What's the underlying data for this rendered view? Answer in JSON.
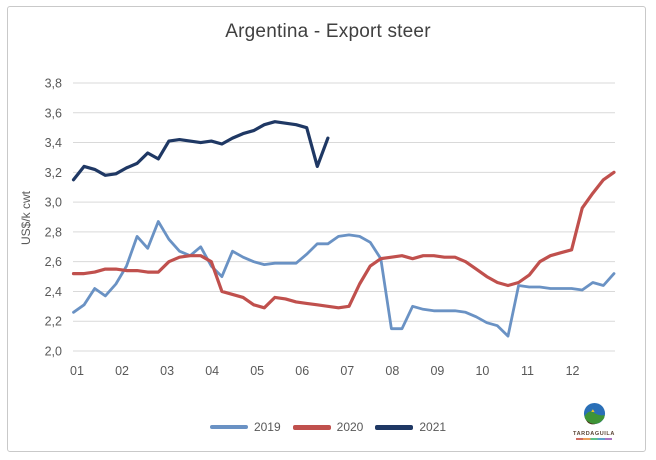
{
  "chart_data": {
    "type": "line",
    "title": "Argentina - Export steer",
    "ylabel": "US$/k cwt",
    "xlabel": "",
    "x_axis": {
      "categories": [
        "01",
        "02",
        "03",
        "04",
        "05",
        "06",
        "07",
        "08",
        "09",
        "10",
        "11",
        "12"
      ],
      "unit": "month-of-year",
      "resolution": "weekly points (52 per full year)"
    },
    "y_axis": {
      "min": 2.0,
      "max": 3.8,
      "tick_step": 0.2,
      "tick_labels": [
        "2,0",
        "2,2",
        "2,4",
        "2,6",
        "2,8",
        "3,0",
        "3,2",
        "3,4",
        "3,6",
        "3,8"
      ]
    },
    "grid": "horizontal",
    "legend_position": "bottom-center",
    "series": [
      {
        "name": "2019",
        "color": "#6a92c4",
        "values": [
          2.26,
          2.31,
          2.42,
          2.37,
          2.45,
          2.57,
          2.77,
          2.69,
          2.87,
          2.75,
          2.67,
          2.64,
          2.7,
          2.57,
          2.5,
          2.67,
          2.63,
          2.6,
          2.58,
          2.59,
          2.59,
          2.59,
          2.65,
          2.72,
          2.72,
          2.77,
          2.78,
          2.77,
          2.73,
          2.62,
          2.15,
          2.15,
          2.3,
          2.28,
          2.27,
          2.27,
          2.27,
          2.26,
          2.23,
          2.19,
          2.17,
          2.1,
          2.44,
          2.43,
          2.43,
          2.42,
          2.42,
          2.42,
          2.41,
          2.46,
          2.44,
          2.52
        ]
      },
      {
        "name": "2020",
        "color": "#c0504d",
        "values": [
          2.52,
          2.52,
          2.53,
          2.55,
          2.55,
          2.54,
          2.54,
          2.53,
          2.53,
          2.6,
          2.63,
          2.64,
          2.64,
          2.6,
          2.4,
          2.38,
          2.36,
          2.31,
          2.29,
          2.36,
          2.35,
          2.33,
          2.32,
          2.31,
          2.3,
          2.29,
          2.3,
          2.45,
          2.57,
          2.62,
          2.63,
          2.64,
          2.62,
          2.64,
          2.64,
          2.63,
          2.63,
          2.6,
          2.55,
          2.5,
          2.46,
          2.44,
          2.46,
          2.51,
          2.6,
          2.64,
          2.66,
          2.68,
          2.96,
          3.06,
          3.15,
          3.2
        ]
      },
      {
        "name": "2021",
        "color": "#1f3864",
        "values": [
          3.15,
          3.24,
          3.22,
          3.18,
          3.19,
          3.23,
          3.26,
          3.33,
          3.29,
          3.41,
          3.42,
          3.41,
          3.4,
          3.41,
          3.39,
          3.43,
          3.46,
          3.48,
          3.52,
          3.54,
          3.53,
          3.52,
          3.5,
          3.24,
          3.43
        ]
      }
    ]
  },
  "branding": {
    "logo_text": "TARDAGUILA"
  },
  "colors": {
    "background": "#ffffff",
    "frame_border": "#c9c9c9",
    "gridline": "#d9d9d9",
    "title_text": "#404040",
    "axis_text": "#595959",
    "series_2019": "#6a92c4",
    "series_2020": "#c0504d",
    "series_2021": "#1f3864"
  }
}
